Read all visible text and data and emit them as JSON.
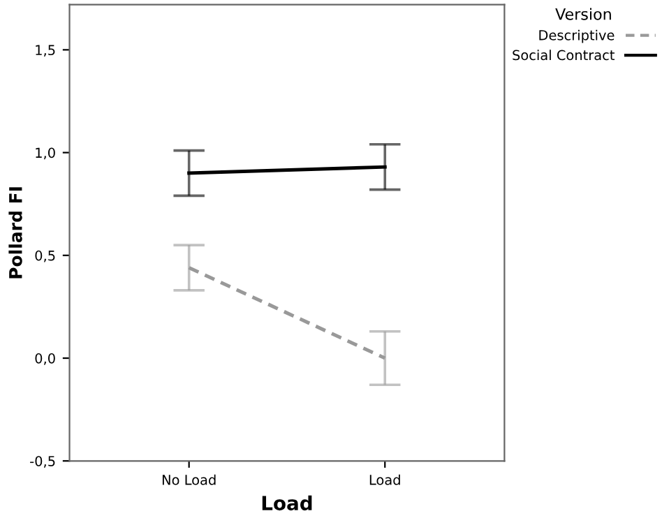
{
  "chart_data": {
    "type": "line",
    "xlabel": "Load",
    "ylabel": "Pollard FI",
    "legend_title": "Version",
    "categories": [
      "No Load",
      "Load"
    ],
    "series": [
      {
        "name": "Descriptive",
        "color": "#999999",
        "values": [
          0.44,
          0.0
        ],
        "errors": [
          [
            0.33,
            0.55
          ],
          [
            -0.13,
            0.13
          ]
        ],
        "line_style": "dashed"
      },
      {
        "name": "Social Contract",
        "color": "#000000",
        "values": [
          0.9,
          0.93
        ],
        "errors": [
          [
            0.79,
            1.01
          ],
          [
            0.82,
            1.04
          ]
        ],
        "line_style": "solid"
      }
    ],
    "ylim": [
      -0.5,
      1.72
    ],
    "yticks": [
      {
        "value": -0.5,
        "label": "-0,5"
      },
      {
        "value": 0.0,
        "label": "0,0"
      },
      {
        "value": 0.5,
        "label": "0,5"
      },
      {
        "value": 1.0,
        "label": "1,0"
      },
      {
        "value": 1.5,
        "label": "1,5"
      }
    ],
    "grid": false,
    "legend": "top right",
    "marker": "none"
  }
}
